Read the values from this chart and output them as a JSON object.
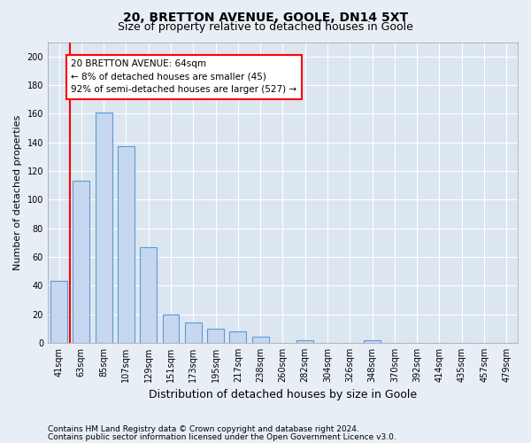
{
  "title": "20, BRETTON AVENUE, GOOLE, DN14 5XT",
  "subtitle": "Size of property relative to detached houses in Goole",
  "xlabel": "Distribution of detached houses by size in Goole",
  "ylabel": "Number of detached properties",
  "categories": [
    "41sqm",
    "63sqm",
    "85sqm",
    "107sqm",
    "129sqm",
    "151sqm",
    "173sqm",
    "195sqm",
    "217sqm",
    "238sqm",
    "260sqm",
    "282sqm",
    "304sqm",
    "326sqm",
    "348sqm",
    "370sqm",
    "392sqm",
    "414sqm",
    "435sqm",
    "457sqm",
    "479sqm"
  ],
  "values": [
    43,
    113,
    161,
    137,
    67,
    20,
    14,
    10,
    8,
    4,
    0,
    2,
    0,
    0,
    2,
    0,
    0,
    0,
    0,
    0,
    0
  ],
  "bar_color": "#c5d8f0",
  "bar_edge_color": "#5b9bd5",
  "annotation_text": "20 BRETTON AVENUE: 64sqm\n← 8% of detached houses are smaller (45)\n92% of semi-detached houses are larger (527) →",
  "ylim": [
    0,
    210
  ],
  "yticks": [
    0,
    20,
    40,
    60,
    80,
    100,
    120,
    140,
    160,
    180,
    200
  ],
  "footer_line1": "Contains HM Land Registry data © Crown copyright and database right 2024.",
  "footer_line2": "Contains public sector information licensed under the Open Government Licence v3.0.",
  "bg_color": "#e8eef5",
  "plot_bg_color": "#dce6f0",
  "grid_color": "#ffffff",
  "title_fontsize": 10,
  "subtitle_fontsize": 9,
  "xlabel_fontsize": 9,
  "ylabel_fontsize": 8,
  "tick_fontsize": 7,
  "annotation_fontsize": 7.5,
  "footer_fontsize": 6.5,
  "red_line_x": 0.5,
  "bar_width": 0.75
}
